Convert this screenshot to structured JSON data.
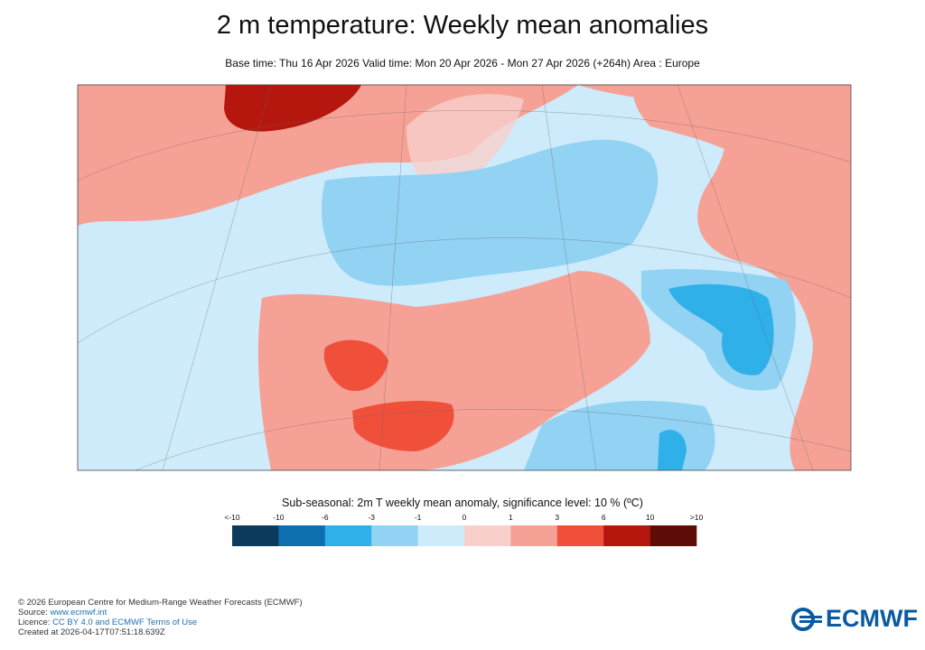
{
  "header": {
    "title": "2 m temperature: Weekly mean anomalies",
    "subtitle": "Base time: Thu 16 Apr 2026 Valid time: Mon 20 Apr 2026 - Mon 27 Apr 2026 (+264h) Area : Europe"
  },
  "legend": {
    "title": "Sub-seasonal: 2m T weekly mean anomaly, significance level: 10 % (ºC)",
    "labels": [
      "<-10",
      "-10",
      "-6",
      "-3",
      "-1",
      "0",
      "1",
      "3",
      "6",
      "10",
      ">10"
    ],
    "colors": [
      "#0b3a5c",
      "#0e6fae",
      "#2fb0e8",
      "#92d2f3",
      "#cdebfa",
      "#f9cfcc",
      "#f6a195",
      "#f0503a",
      "#b5170e",
      "#5e0d06"
    ]
  },
  "footer": {
    "copyright": "© 2026 European Centre for Medium-Range Weather Forecasts (ECMWF)",
    "source_label": "Source: ",
    "source_link": "www.ecmwf.int",
    "licence_label": "Licence: ",
    "licence_link": "CC BY 4.0 and ECMWF Terms of Use",
    "created": "Created at 2026-04-17T07:51:18.639Z"
  },
  "logo": {
    "text": "ECMWF"
  }
}
